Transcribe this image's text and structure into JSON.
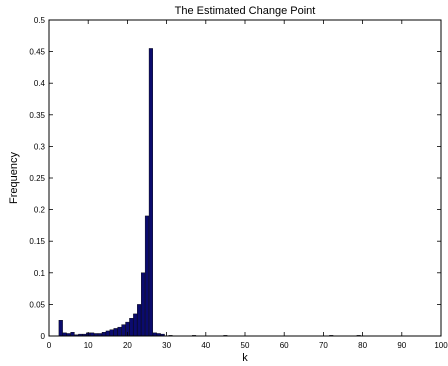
{
  "chart_data": {
    "type": "bar",
    "title": "The Estimated Change Point",
    "xlabel": "k",
    "ylabel": "Frequency",
    "xlim": [
      0,
      100
    ],
    "ylim": [
      0,
      0.5
    ],
    "xticks": [
      "0",
      "10",
      "20",
      "30",
      "40",
      "50",
      "60",
      "70",
      "80",
      "90",
      "100"
    ],
    "yticks": [
      "0",
      "0.05",
      "0.1",
      "0.15",
      "0.2",
      "0.25",
      "0.3",
      "0.35",
      "0.4",
      "0.45",
      "0.5"
    ],
    "grid": false,
    "legend": "none",
    "bar_color": "#0b0b6e",
    "bar_edge_color": "#000000",
    "x": [
      3,
      4,
      5,
      6,
      7,
      8,
      9,
      10,
      11,
      12,
      13,
      14,
      15,
      16,
      17,
      18,
      19,
      20,
      21,
      22,
      23,
      24,
      25,
      26,
      27,
      28,
      29,
      31,
      37,
      45,
      72,
      79
    ],
    "values": [
      0.025,
      0.005,
      0.004,
      0.006,
      0.002,
      0.003,
      0.003,
      0.005,
      0.005,
      0.004,
      0.004,
      0.006,
      0.008,
      0.01,
      0.012,
      0.014,
      0.018,
      0.022,
      0.028,
      0.035,
      0.05,
      0.1,
      0.19,
      0.455,
      0.005,
      0.004,
      0.003,
      0.001,
      0.001,
      0.001,
      0.001,
      0.001
    ]
  }
}
